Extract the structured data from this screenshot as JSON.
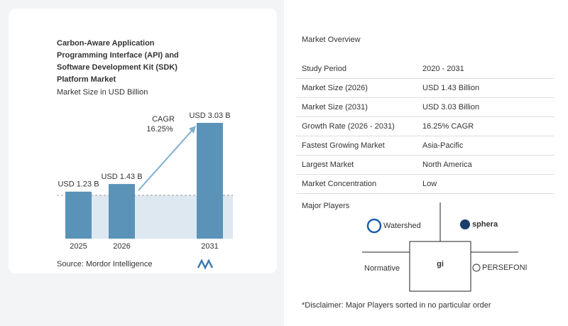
{
  "chart_data": {
    "type": "bar",
    "title": "Carbon-Aware Application Programming Interface (API) and Software Development Kit (SDK) Platform Market",
    "subtitle": "Market Size in USD Billion",
    "categories": [
      "2025",
      "2026",
      "2031"
    ],
    "values": [
      1.23,
      1.43,
      3.03
    ],
    "value_labels": [
      "USD 1.23 B",
      "USD 1.43 B",
      "USD 3.03 B"
    ],
    "color": "#5b93b8",
    "annotation": {
      "label": "CAGR",
      "text": "16.25%"
    },
    "source": "Source: Mordor Intelligence"
  },
  "overview": {
    "title": "Market Overview",
    "rows": [
      [
        "Study Period",
        "2020 - 2031"
      ],
      [
        "Market Size (2026)",
        "USD 1.43 Billion"
      ],
      [
        "Market Size (2031)",
        "USD 3.03 Billion"
      ],
      [
        "Growth Rate (2026 - 2031)",
        "16.25% CAGR"
      ],
      [
        "Fastest Growing Market",
        "Asia-Pacific"
      ],
      [
        "Largest Market",
        "North America"
      ],
      [
        "Market Concentration",
        "Low"
      ]
    ]
  },
  "players": {
    "title": "Major Players",
    "names": [
      "Watershed",
      "sphera",
      "Normative",
      "gi",
      "PERSEFONI"
    ]
  },
  "disclaimer": "*Disclaimer: Major Players sorted in no particular order"
}
